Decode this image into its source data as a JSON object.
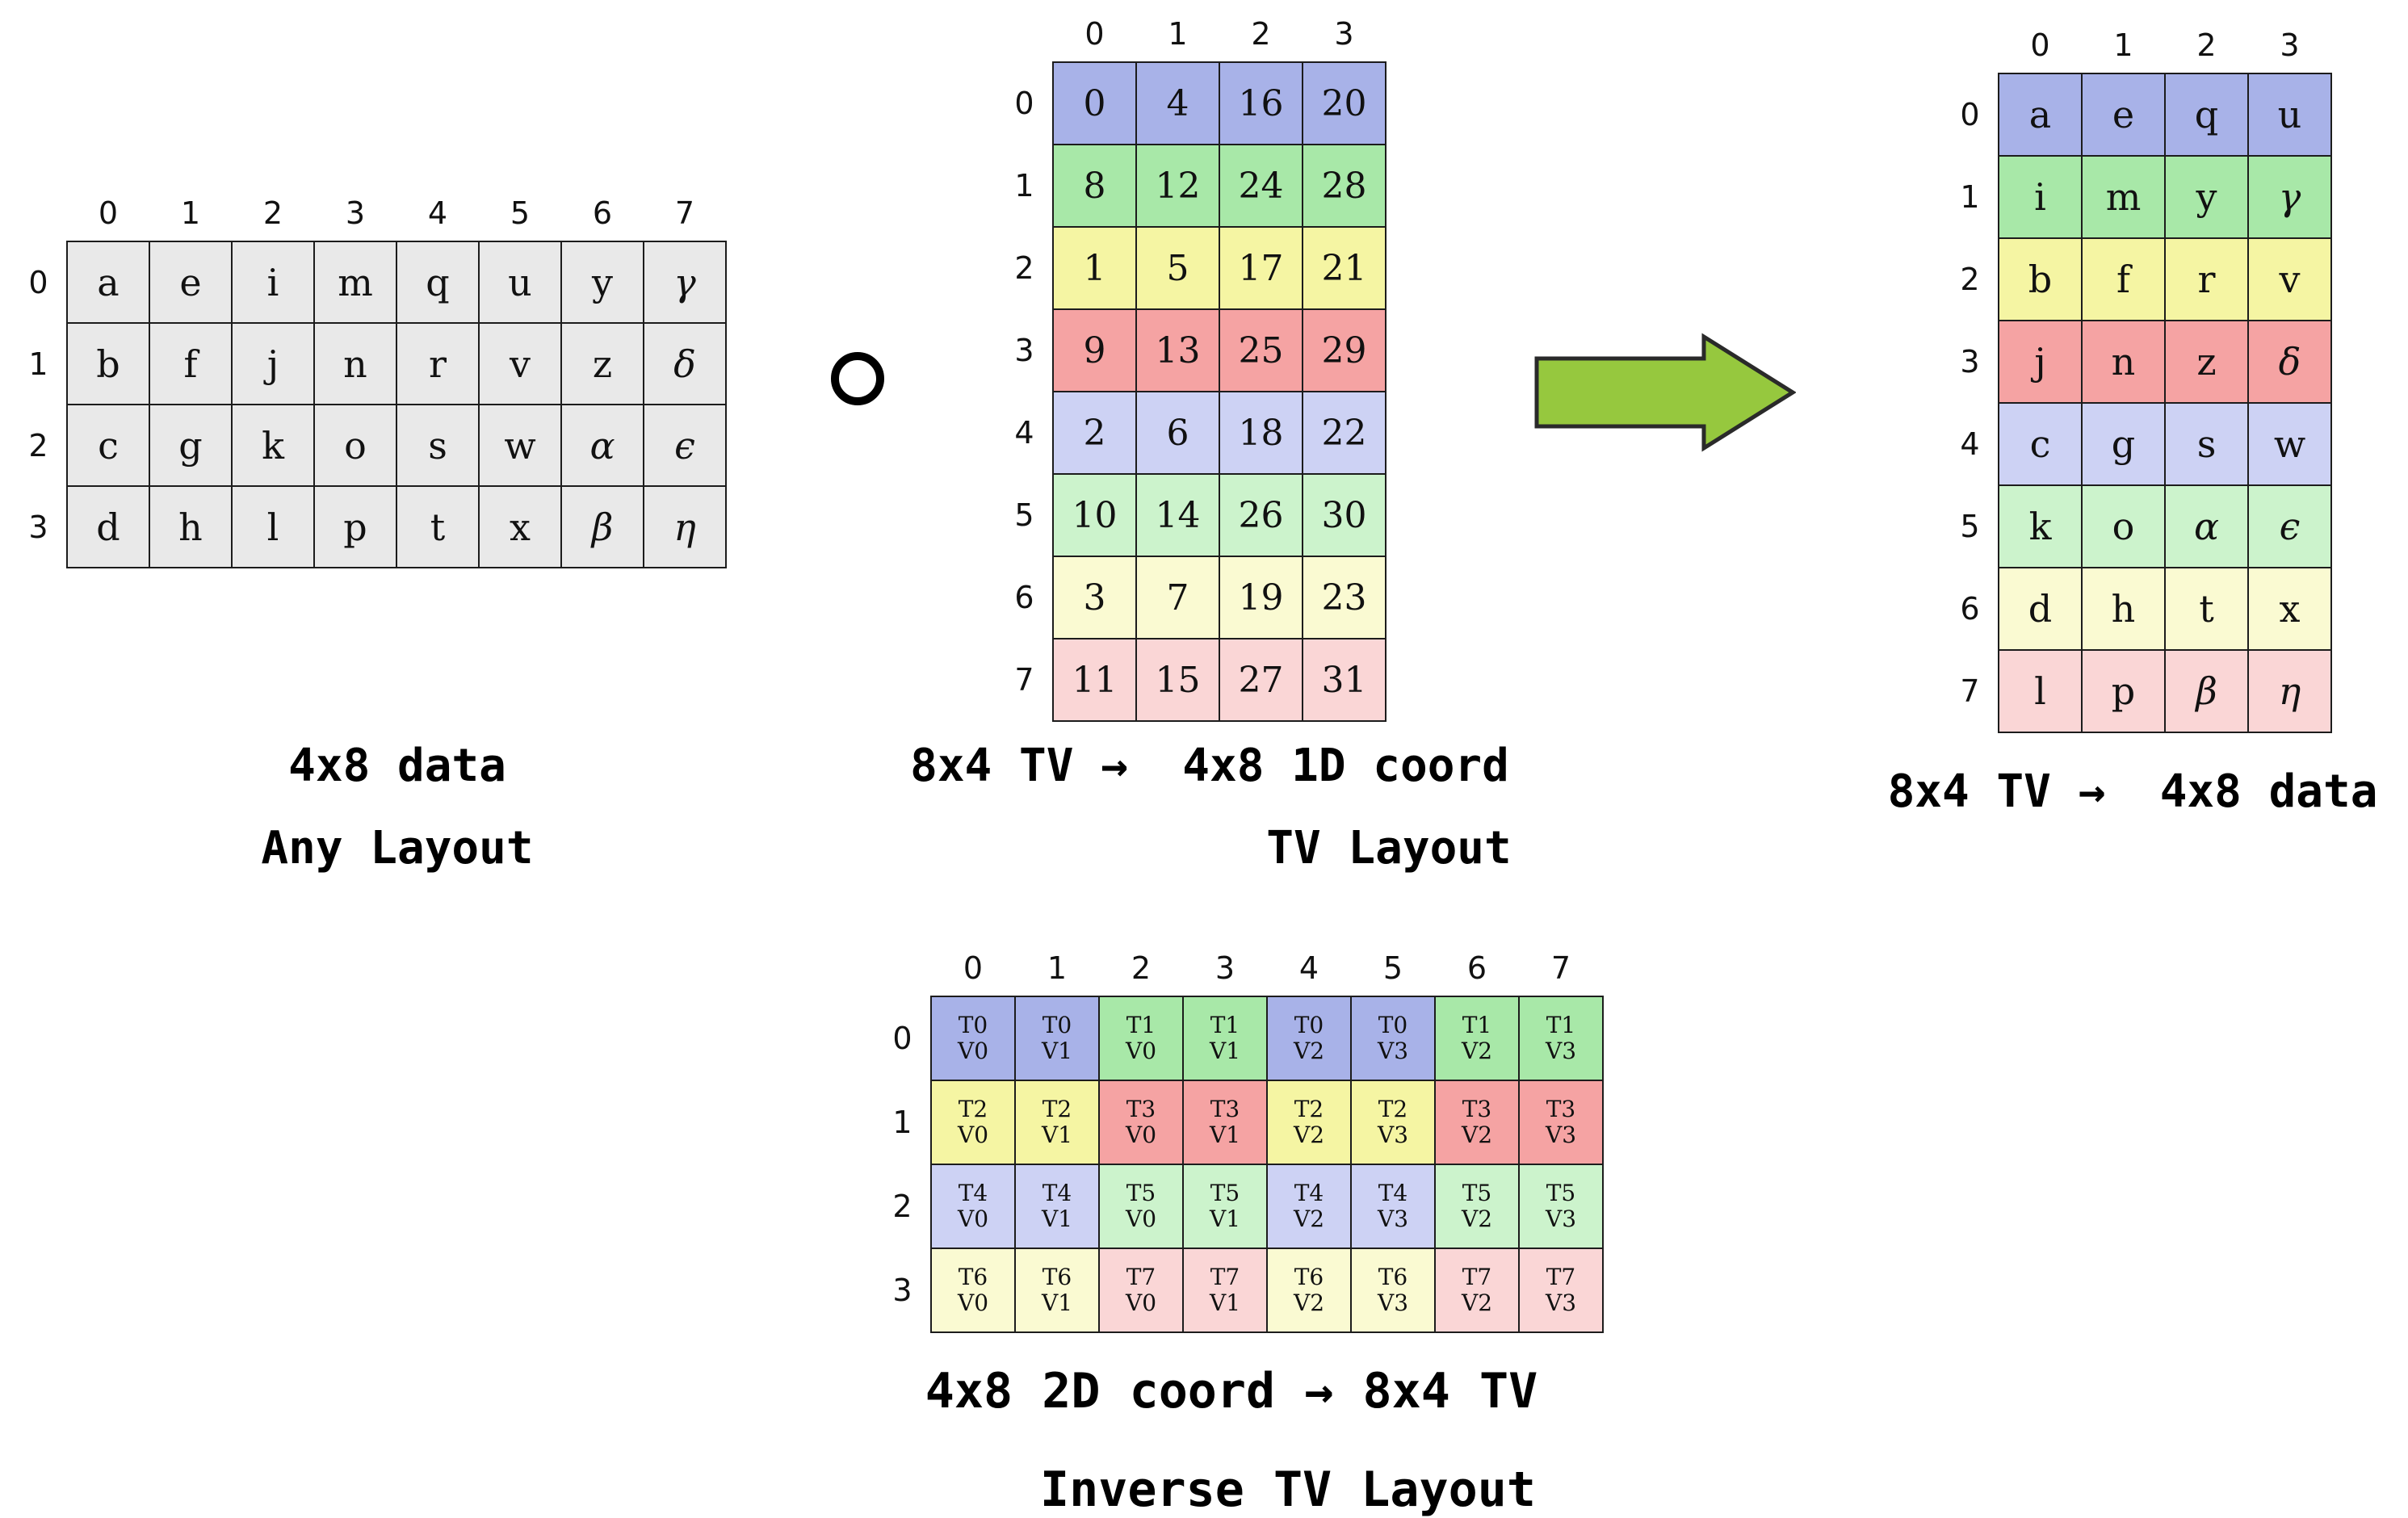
{
  "colors": {
    "t0": "#a8b2e8",
    "t1": "#a8e8a8",
    "t2": "#f5f5a3",
    "t3": "#f5a3a3",
    "t4": "#cdd2f4",
    "t5": "#ccf3cc",
    "t6": "#fafad2",
    "t7": "#fad6d6",
    "gray": "#e9e9e9",
    "arrow_fill": "#96c83e",
    "arrow_stroke": "#2a2a2a"
  },
  "icons": {
    "compose_operator": "∘",
    "transform_arrow": "right-block-arrow"
  },
  "tables": {
    "data_any_layout": {
      "col_headers": [
        "0",
        "1",
        "2",
        "3",
        "4",
        "5",
        "6",
        "7"
      ],
      "row_headers": [
        "0",
        "1",
        "2",
        "3"
      ],
      "fill": "gray",
      "rows": [
        [
          "a",
          "e",
          "i",
          "m",
          "q",
          "u",
          "y",
          "γ"
        ],
        [
          "b",
          "f",
          "j",
          "n",
          "r",
          "v",
          "z",
          "δ"
        ],
        [
          "c",
          "g",
          "k",
          "o",
          "s",
          "w",
          "α",
          "ϵ"
        ],
        [
          "d",
          "h",
          "l",
          "p",
          "t",
          "x",
          "β",
          "η"
        ]
      ]
    },
    "tv_layout": {
      "col_headers": [
        "0",
        "1",
        "2",
        "3"
      ],
      "row_headers": [
        "0",
        "1",
        "2",
        "3",
        "4",
        "5",
        "6",
        "7"
      ],
      "row_colors": [
        "t0",
        "t1",
        "t2",
        "t3",
        "t4",
        "t5",
        "t6",
        "t7"
      ],
      "rows": [
        [
          "0",
          "4",
          "16",
          "20"
        ],
        [
          "8",
          "12",
          "24",
          "28"
        ],
        [
          "1",
          "5",
          "17",
          "21"
        ],
        [
          "9",
          "13",
          "25",
          "29"
        ],
        [
          "2",
          "6",
          "18",
          "22"
        ],
        [
          "10",
          "14",
          "26",
          "30"
        ],
        [
          "3",
          "7",
          "19",
          "23"
        ],
        [
          "11",
          "15",
          "27",
          "31"
        ]
      ]
    },
    "result": {
      "col_headers": [
        "0",
        "1",
        "2",
        "3"
      ],
      "row_headers": [
        "0",
        "1",
        "2",
        "3",
        "4",
        "5",
        "6",
        "7"
      ],
      "row_colors": [
        "t0",
        "t1",
        "t2",
        "t3",
        "t4",
        "t5",
        "t6",
        "t7"
      ],
      "rows": [
        [
          "a",
          "e",
          "q",
          "u"
        ],
        [
          "i",
          "m",
          "y",
          "γ"
        ],
        [
          "b",
          "f",
          "r",
          "v"
        ],
        [
          "j",
          "n",
          "z",
          "δ"
        ],
        [
          "c",
          "g",
          "s",
          "w"
        ],
        [
          "k",
          "o",
          "α",
          "ϵ"
        ],
        [
          "d",
          "h",
          "t",
          "x"
        ],
        [
          "l",
          "p",
          "β",
          "η"
        ]
      ]
    },
    "inverse_tv": {
      "col_headers": [
        "0",
        "1",
        "2",
        "3",
        "4",
        "5",
        "6",
        "7"
      ],
      "row_headers": [
        "0",
        "1",
        "2",
        "3"
      ],
      "rows": [
        [
          {
            "t": "T0",
            "v": "V0",
            "c": "t0"
          },
          {
            "t": "T0",
            "v": "V1",
            "c": "t0"
          },
          {
            "t": "T1",
            "v": "V0",
            "c": "t1"
          },
          {
            "t": "T1",
            "v": "V1",
            "c": "t1"
          },
          {
            "t": "T0",
            "v": "V2",
            "c": "t0"
          },
          {
            "t": "T0",
            "v": "V3",
            "c": "t0"
          },
          {
            "t": "T1",
            "v": "V2",
            "c": "t1"
          },
          {
            "t": "T1",
            "v": "V3",
            "c": "t1"
          }
        ],
        [
          {
            "t": "T2",
            "v": "V0",
            "c": "t2"
          },
          {
            "t": "T2",
            "v": "V1",
            "c": "t2"
          },
          {
            "t": "T3",
            "v": "V0",
            "c": "t3"
          },
          {
            "t": "T3",
            "v": "V1",
            "c": "t3"
          },
          {
            "t": "T2",
            "v": "V2",
            "c": "t2"
          },
          {
            "t": "T2",
            "v": "V3",
            "c": "t2"
          },
          {
            "t": "T3",
            "v": "V2",
            "c": "t3"
          },
          {
            "t": "T3",
            "v": "V3",
            "c": "t3"
          }
        ],
        [
          {
            "t": "T4",
            "v": "V0",
            "c": "t4"
          },
          {
            "t": "T4",
            "v": "V1",
            "c": "t4"
          },
          {
            "t": "T5",
            "v": "V0",
            "c": "t5"
          },
          {
            "t": "T5",
            "v": "V1",
            "c": "t5"
          },
          {
            "t": "T4",
            "v": "V2",
            "c": "t4"
          },
          {
            "t": "T4",
            "v": "V3",
            "c": "t4"
          },
          {
            "t": "T5",
            "v": "V2",
            "c": "t5"
          },
          {
            "t": "T5",
            "v": "V3",
            "c": "t5"
          }
        ],
        [
          {
            "t": "T6",
            "v": "V0",
            "c": "t6"
          },
          {
            "t": "T6",
            "v": "V1",
            "c": "t6"
          },
          {
            "t": "T7",
            "v": "V0",
            "c": "t7"
          },
          {
            "t": "T7",
            "v": "V1",
            "c": "t7"
          },
          {
            "t": "T6",
            "v": "V2",
            "c": "t6"
          },
          {
            "t": "T6",
            "v": "V3",
            "c": "t6"
          },
          {
            "t": "T7",
            "v": "V2",
            "c": "t7"
          },
          {
            "t": "T7",
            "v": "V3",
            "c": "t7"
          }
        ]
      ]
    }
  },
  "captions": {
    "data_any_layout_line1": "4x8 data",
    "data_any_layout_line2": "Any Layout",
    "tv_layout_line1": "8x4 TV →  4x8 1D coord",
    "tv_layout_line2": "TV Layout",
    "result_line1": "8x4 TV →  4x8 data",
    "inverse_line1": "4x8 2D coord → 8x4 TV",
    "inverse_line2": "Inverse TV Layout"
  }
}
